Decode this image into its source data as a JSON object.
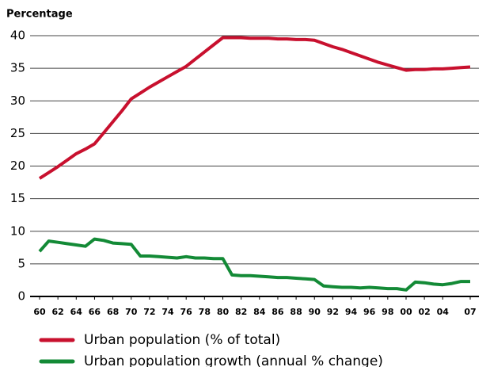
{
  "chart_data": {
    "type": "line",
    "y_axis_label": "Percentage",
    "categories": [
      "60",
      null,
      "62",
      null,
      "64",
      null,
      "66",
      null,
      "68",
      null,
      "70",
      null,
      "72",
      null,
      "74",
      null,
      "76",
      null,
      "78",
      null,
      "80",
      null,
      "82",
      null,
      "84",
      null,
      "86",
      null,
      "88",
      null,
      "90",
      null,
      "92",
      null,
      "94",
      null,
      "96",
      null,
      "98",
      null,
      "00",
      null,
      "02",
      null,
      "04",
      null,
      null,
      "07"
    ],
    "series": [
      {
        "name": "Urban population (% of total)",
        "color": "#c8102e",
        "values": [
          18.1,
          19.0,
          19.9,
          20.9,
          21.9,
          22.6,
          23.4,
          25.1,
          26.8,
          28.5,
          30.3,
          31.2,
          32.1,
          32.9,
          33.7,
          34.5,
          35.3,
          36.4,
          37.5,
          38.6,
          39.7,
          39.7,
          39.7,
          39.6,
          39.6,
          39.6,
          39.5,
          39.5,
          39.4,
          39.4,
          39.3,
          38.8,
          38.3,
          37.9,
          37.4,
          36.9,
          36.4,
          35.9,
          35.5,
          35.1,
          34.7,
          34.8,
          34.8,
          34.9,
          34.9,
          35.0,
          35.1,
          35.2
        ]
      },
      {
        "name": "Urban population growth (annual % change)",
        "color": "#138a36",
        "values": [
          6.9,
          8.5,
          8.3,
          8.1,
          7.9,
          7.7,
          8.8,
          8.6,
          8.2,
          8.1,
          8.0,
          6.2,
          6.2,
          6.1,
          6.0,
          5.9,
          6.1,
          5.9,
          5.9,
          5.8,
          5.8,
          3.3,
          3.2,
          3.2,
          3.1,
          3.0,
          2.9,
          2.9,
          2.8,
          2.7,
          2.6,
          1.6,
          1.5,
          1.4,
          1.4,
          1.3,
          1.4,
          1.3,
          1.2,
          1.2,
          1.0,
          2.2,
          2.1,
          1.9,
          1.8,
          2.0,
          2.3,
          2.3
        ]
      }
    ],
    "ylim": [
      0,
      40
    ],
    "yticks": [
      0,
      5,
      10,
      15,
      20,
      25,
      30,
      35,
      40
    ],
    "grid": true
  }
}
